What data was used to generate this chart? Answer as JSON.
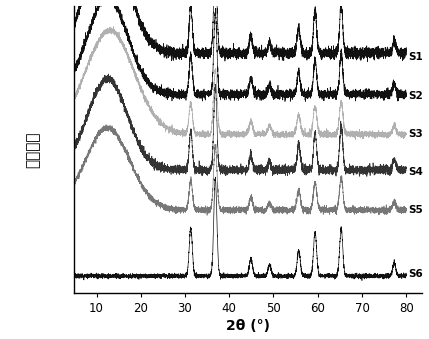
{
  "x_min": 5,
  "x_max": 80,
  "xlabel": "2θ (°)",
  "ylabel": "相对强度",
  "xticks": [
    10,
    20,
    30,
    40,
    50,
    60,
    70,
    80
  ],
  "series_labels": [
    "S1",
    "S2",
    "S3",
    "S4",
    "S5",
    "S6"
  ],
  "series_colors": [
    "#111111",
    "#111111",
    "#b0b0b0",
    "#333333",
    "#777777",
    "#111111"
  ],
  "label_colors": [
    "#111111",
    "#111111",
    "#111111",
    "#111111",
    "#111111",
    "#111111"
  ],
  "offsets": [
    1.0,
    0.82,
    0.645,
    0.47,
    0.295,
    0.0
  ],
  "scale": 0.13,
  "background_color": "#ffffff",
  "noise_amp": 0.008,
  "lw": 0.5
}
